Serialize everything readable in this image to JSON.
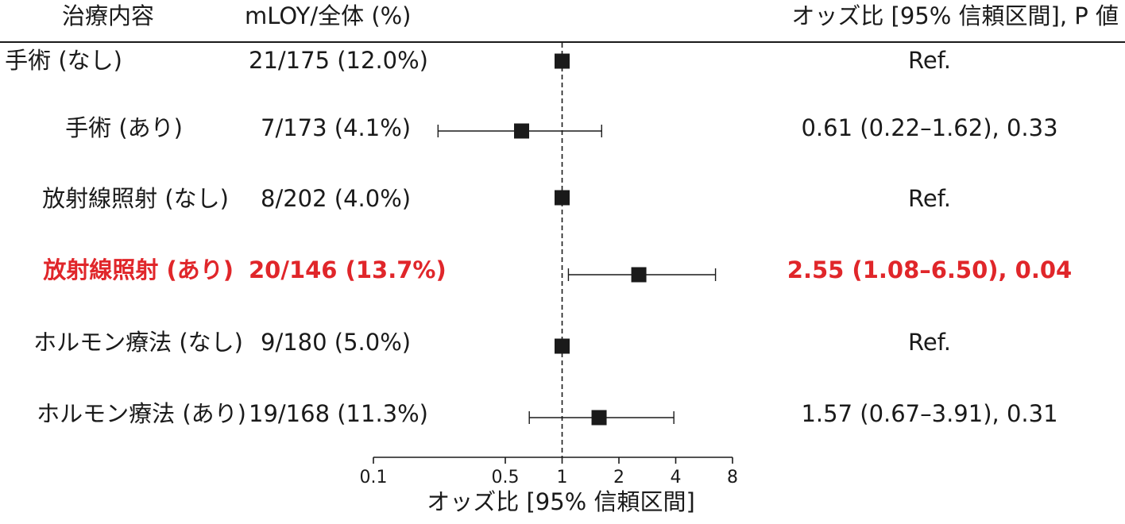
{
  "header": {
    "treatment": "治療内容",
    "counts": "mLOY/全体 (%)",
    "estimate": "オッズ比 [95% 信頼区間], P 値"
  },
  "rows": [
    {
      "label": "手術 (なし)",
      "counts": "21/175 (12.0%)",
      "estimate": "Ref.",
      "highlight": false
    },
    {
      "label": "手術 (あり)",
      "counts": "7/173 (4.1%)",
      "estimate": "0.61 (0.22–1.62), 0.33",
      "highlight": false
    },
    {
      "label": "放射線照射 (なし)",
      "counts": "8/202 (4.0%)",
      "estimate": "Ref.",
      "highlight": false
    },
    {
      "label": "放射線照射 (あり)",
      "counts": "20/146 (13.7%)",
      "estimate": "2.55 (1.08–6.50), 0.04",
      "highlight": true
    },
    {
      "label": "ホルモン療法 (なし)",
      "counts": "9/180 (5.0%)",
      "estimate": "Ref.",
      "highlight": false
    },
    {
      "label": "ホルモン療法 (あり)",
      "counts": "19/168 (11.3%)",
      "estimate": "1.57 (0.67–3.91), 0.31",
      "highlight": false
    }
  ],
  "chart_data": {
    "type": "forest",
    "scale": "log",
    "xlim": [
      0.1,
      8
    ],
    "reference_line": 1,
    "xticks": [
      0.1,
      0.5,
      1,
      2,
      4,
      8
    ],
    "xtick_labels": [
      "0.1",
      "0.5",
      "1",
      "2",
      "4",
      "8"
    ],
    "xlabel": "オッズ比 [95% 信頼区間]",
    "points": [
      {
        "or": 1,
        "lo": null,
        "hi": null
      },
      {
        "or": 0.61,
        "lo": 0.22,
        "hi": 1.62
      },
      {
        "or": 1,
        "lo": null,
        "hi": null
      },
      {
        "or": 2.55,
        "lo": 1.08,
        "hi": 6.5
      },
      {
        "or": 1,
        "lo": null,
        "hi": null
      },
      {
        "or": 1.57,
        "lo": 0.67,
        "hi": 3.91
      }
    ]
  },
  "colors": {
    "text": "#1a1a1a",
    "highlight": "#e0262a"
  }
}
